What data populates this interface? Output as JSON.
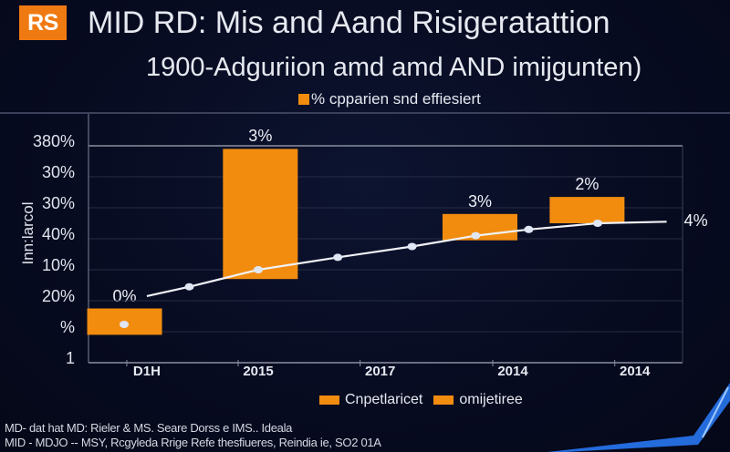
{
  "header": {
    "logo_text": "RS",
    "title": "MID RD: Mis and Aand Risigeratattion",
    "subtitle": "1900-Adguriion  amd amd AND imijgunten)",
    "top_legend_label": "% cpparien snd effiesiert"
  },
  "colors": {
    "background": "#070b20",
    "bar": "#f28c0f",
    "line": "#f0f2f6",
    "logo": "#f07a12",
    "accent_swoosh": "#2a7cff"
  },
  "chart_data": {
    "type": "bar",
    "title": "MID RD: Mis and Aand Risigeratattion",
    "subtitle": "1900-Adguriion  amd amd AND imijgunten)",
    "xlabel": "",
    "ylabel": "Inn:larcol",
    "y_tick_labels": [
      "380%",
      "30%",
      "30%",
      "40%",
      "10%",
      "20%",
      "%",
      "1"
    ],
    "x_tick_labels": [
      "D1H",
      "2015",
      "2017",
      "2014",
      "2014"
    ],
    "grid": true,
    "legend_position": "bottom",
    "legend": [
      "Cnpetlaricet",
      "omijetiree"
    ],
    "bar_series": {
      "name": "Cnpetlaricet",
      "bars": [
        {
          "category_index": 0,
          "bottom": 0.9,
          "top": 1.75,
          "label": "0%"
        },
        {
          "category_index": 1,
          "bottom": 2.7,
          "top": 6.9,
          "label": "3%"
        },
        {
          "category_index": 3,
          "bottom": 3.95,
          "top": 4.8,
          "label": "3%"
        },
        {
          "category_index": 4,
          "bottom": 4.5,
          "top": 5.35,
          "label": "2%"
        }
      ]
    },
    "line_series": {
      "name": "omijetiree",
      "points": [
        [
          0.35,
          2.15
        ],
        [
          0.75,
          2.45
        ],
        [
          1.4,
          3.0
        ],
        [
          2.15,
          3.4
        ],
        [
          2.85,
          3.75
        ],
        [
          3.45,
          4.1
        ],
        [
          3.95,
          4.3
        ],
        [
          4.6,
          4.5
        ],
        [
          5.25,
          4.55
        ]
      ],
      "end_label": "4%"
    },
    "ylim": [
      0,
      7
    ],
    "xlim": [
      -0.2,
      5.4
    ]
  },
  "footer": {
    "line1": "MD- dat hat MD: Rieler & MS. Seare Dorss e IMS.. Ideala",
    "line2": "MID - MDJO -- MSY, Rcgyleda Rrige  Refe  thesfiueres, Reindia ie, SO2 01A"
  }
}
